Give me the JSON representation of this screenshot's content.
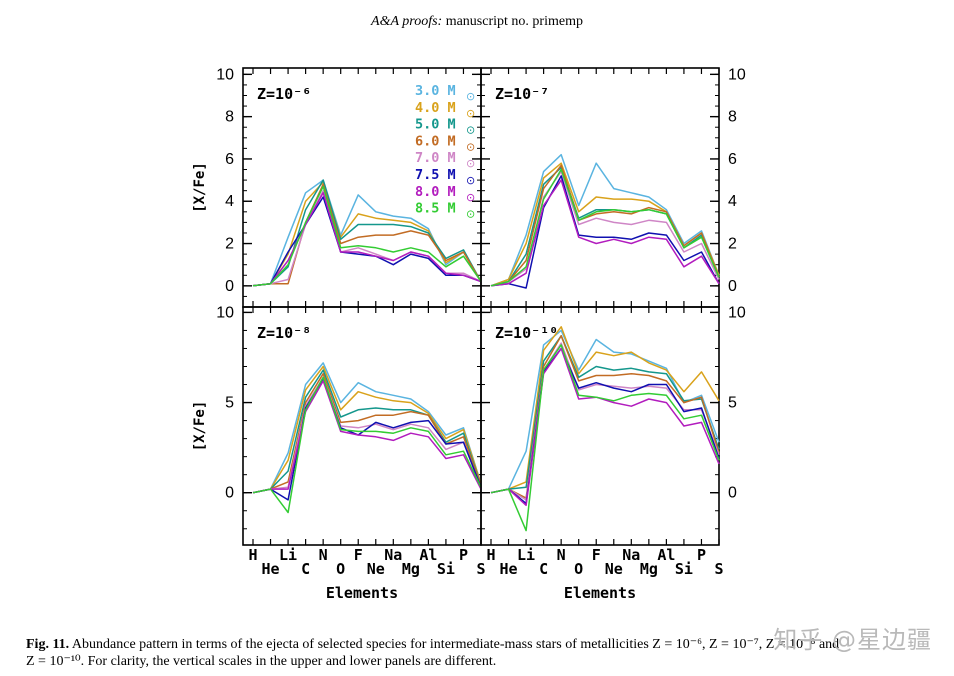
{
  "header": {
    "journal": "A&A proofs:",
    "rest": " manuscript no. primemp"
  },
  "watermark": "知乎 @星边疆",
  "caption": {
    "label": "Fig. 11.",
    "text": " Abundance pattern in terms of the ejecta of selected species for intermediate-mass stars of metallicities Z = 10⁻⁶, Z = 10⁻⁷, Z = 10⁻⁸ and",
    "text2": "Z = 10⁻¹⁰. For clarity, the vertical scales in the upper and lower panels are different."
  },
  "chart_data": {
    "type": "line",
    "xlabel": "Elements",
    "ylabel": "[X/Fe]",
    "elements_upper_row": [
      "H",
      "Li",
      "N",
      "F",
      "Na",
      "Al",
      "P"
    ],
    "elements_lower_row": [
      "He",
      "C",
      "O",
      "Ne",
      "Mg",
      "Si",
      "S"
    ],
    "x_order": [
      "H",
      "He",
      "Li",
      "C",
      "N",
      "O",
      "F",
      "Ne",
      "Na",
      "Mg",
      "Al",
      "Si",
      "P",
      "S"
    ],
    "legend_labels": [
      "3.0 M",
      "4.0 M",
      "5.0 M",
      "6.0 M",
      "7.0 M",
      "7.5 M",
      "8.0 M",
      "8.5 M"
    ],
    "legend_sun": "⊙",
    "legend_colors": [
      "#5ab4e0",
      "#d9a21b",
      "#14978c",
      "#c26c24",
      "#cf86c6",
      "#1010b0",
      "#b21cbe",
      "#33cc33"
    ],
    "panels": [
      {
        "title": "Z=10⁻⁶",
        "ylim": [
          -1,
          10.3
        ],
        "yticks": [
          0,
          2,
          4,
          6,
          8,
          10
        ],
        "series": [
          {
            "name": "3.0 M",
            "values": [
              0,
              0.1,
              2.3,
              4.4,
              5.0,
              2.4,
              4.3,
              3.5,
              3.3,
              3.2,
              2.7,
              1.0,
              1.6,
              0.2
            ]
          },
          {
            "name": "4.0 M",
            "values": [
              0,
              0.1,
              1.5,
              4.0,
              4.9,
              2.3,
              3.4,
              3.2,
              3.1,
              3.0,
              2.6,
              1.1,
              1.6,
              0.2
            ]
          },
          {
            "name": "5.0 M",
            "values": [
              0,
              0.1,
              0.9,
              3.6,
              5.0,
              2.2,
              2.9,
              2.9,
              2.9,
              2.8,
              2.5,
              1.3,
              1.7,
              0.2
            ]
          },
          {
            "name": "6.0 M",
            "values": [
              0,
              0.1,
              0.1,
              3.0,
              4.8,
              2.0,
              2.3,
              2.4,
              2.4,
              2.6,
              2.4,
              1.2,
              1.6,
              0.2
            ]
          },
          {
            "name": "7.0 M",
            "values": [
              0,
              0.1,
              0.3,
              2.9,
              4.5,
              1.6,
              1.8,
              1.5,
              1.2,
              1.6,
              1.4,
              0.6,
              0.6,
              0.2
            ]
          },
          {
            "name": "7.5 M",
            "values": [
              0,
              0.1,
              1.6,
              2.9,
              4.2,
              1.6,
              1.5,
              1.4,
              1.0,
              1.5,
              1.3,
              0.5,
              0.5,
              0.2
            ]
          },
          {
            "name": "8.0 M",
            "values": [
              0,
              0.1,
              1.2,
              2.9,
              4.4,
              1.6,
              1.6,
              1.4,
              1.2,
              1.6,
              1.4,
              0.6,
              0.5,
              0.2
            ]
          },
          {
            "name": "8.5 M",
            "values": [
              0,
              0.1,
              1.0,
              3.0,
              4.7,
              1.8,
              1.9,
              1.8,
              1.6,
              1.8,
              1.6,
              0.9,
              1.4,
              0.2
            ]
          }
        ]
      },
      {
        "title": "Z=10⁻⁷",
        "ylim": [
          -1,
          10.3
        ],
        "yticks": [
          0,
          2,
          4,
          6,
          8,
          10
        ],
        "series": [
          {
            "name": "3.0 M",
            "values": [
              0,
              0.3,
              2.4,
              5.4,
              6.2,
              3.8,
              5.8,
              4.6,
              4.4,
              4.2,
              3.6,
              2.0,
              2.6,
              0.5
            ]
          },
          {
            "name": "4.0 M",
            "values": [
              0,
              0.3,
              2.0,
              5.1,
              5.8,
              3.5,
              4.2,
              4.1,
              4.1,
              4.0,
              3.5,
              1.9,
              2.5,
              0.5
            ]
          },
          {
            "name": "5.0 M",
            "values": [
              0,
              0.2,
              1.5,
              4.8,
              5.6,
              3.2,
              3.6,
              3.6,
              3.5,
              3.6,
              3.4,
              1.8,
              2.4,
              0.4
            ]
          },
          {
            "name": "6.0 M",
            "values": [
              0,
              0.2,
              1.2,
              4.6,
              5.7,
              3.1,
              3.4,
              3.5,
              3.4,
              3.7,
              3.5,
              1.9,
              2.5,
              0.4
            ]
          },
          {
            "name": "7.0 M",
            "values": [
              0,
              0.2,
              0.8,
              4.2,
              5.4,
              2.9,
              3.2,
              3.0,
              2.9,
              3.1,
              3.0,
              1.6,
              2.0,
              0.3
            ]
          },
          {
            "name": "7.5 M",
            "values": [
              0,
              0.1,
              -0.1,
              3.7,
              5.2,
              2.4,
              2.3,
              2.3,
              2.2,
              2.5,
              2.4,
              1.2,
              1.6,
              0.1
            ]
          },
          {
            "name": "8.0 M",
            "values": [
              0,
              0.1,
              0.6,
              3.8,
              5.0,
              2.3,
              2.0,
              2.2,
              2.0,
              2.3,
              2.2,
              0.9,
              1.4,
              0.1
            ]
          },
          {
            "name": "8.5 M",
            "values": [
              0,
              0.2,
              0.9,
              4.1,
              5.5,
              3.1,
              3.5,
              3.6,
              3.5,
              3.6,
              3.4,
              1.8,
              2.3,
              0.4
            ]
          }
        ]
      },
      {
        "title": "Z=10⁻⁸",
        "ylim": [
          -2.9,
          10.3
        ],
        "yticks": [
          0,
          5,
          10
        ],
        "series": [
          {
            "name": "3.0 M",
            "values": [
              0,
              0.2,
              2.2,
              6.0,
              7.2,
              5.0,
              6.1,
              5.6,
              5.4,
              5.2,
              4.5,
              3.2,
              3.6,
              0.5
            ]
          },
          {
            "name": "4.0 M",
            "values": [
              0,
              0.2,
              1.8,
              5.7,
              7.0,
              4.6,
              5.6,
              5.3,
              5.1,
              5.0,
              4.4,
              3.0,
              3.5,
              0.5
            ]
          },
          {
            "name": "5.0 M",
            "values": [
              0,
              0.2,
              1.2,
              5.3,
              6.8,
              4.2,
              4.6,
              4.7,
              4.6,
              4.6,
              4.3,
              2.8,
              3.3,
              0.4
            ]
          },
          {
            "name": "6.0 M",
            "values": [
              0,
              0.2,
              0.6,
              5.0,
              6.6,
              3.9,
              4.0,
              4.3,
              4.3,
              4.5,
              4.3,
              2.7,
              3.1,
              0.4
            ]
          },
          {
            "name": "7.0 M",
            "values": [
              0,
              0.2,
              0.3,
              4.8,
              6.4,
              3.7,
              3.6,
              3.8,
              3.5,
              3.8,
              3.6,
              2.4,
              2.8,
              0.3
            ]
          },
          {
            "name": "7.5 M",
            "values": [
              0,
              0.2,
              -0.4,
              4.7,
              6.3,
              3.6,
              3.2,
              3.9,
              3.6,
              3.9,
              4.0,
              2.7,
              2.8,
              0.3
            ]
          },
          {
            "name": "8.0 M",
            "values": [
              0,
              0.2,
              0.2,
              4.5,
              6.2,
              3.4,
              3.2,
              3.1,
              2.9,
              3.3,
              3.1,
              1.9,
              2.1,
              0.2
            ]
          },
          {
            "name": "8.5 M",
            "values": [
              0,
              0.2,
              -1.1,
              4.6,
              6.4,
              3.5,
              3.4,
              3.4,
              3.3,
              3.6,
              3.4,
              2.1,
              2.3,
              0.3
            ]
          }
        ]
      },
      {
        "title": "Z=10⁻¹⁰",
        "ylim": [
          -2.9,
          10.3
        ],
        "yticks": [
          0,
          5,
          10
        ],
        "series": [
          {
            "name": "3.0 M",
            "values": [
              0,
              0.2,
              2.3,
              8.2,
              9.0,
              6.8,
              8.5,
              7.8,
              7.7,
              7.3,
              6.9,
              5.0,
              5.4,
              2.8
            ]
          },
          {
            "name": "4.0 M",
            "values": [
              0,
              0.2,
              0.6,
              7.9,
              9.2,
              6.6,
              7.8,
              7.6,
              7.8,
              7.2,
              6.8,
              5.6,
              6.7,
              5.1
            ]
          },
          {
            "name": "5.0 M",
            "values": [
              0,
              0.2,
              0.3,
              7.3,
              8.7,
              6.4,
              7.0,
              6.8,
              6.9,
              6.7,
              6.6,
              5.1,
              5.2,
              2.4
            ]
          },
          {
            "name": "6.0 M",
            "values": [
              0,
              0.2,
              -0.3,
              7.0,
              8.7,
              6.2,
              6.5,
              6.5,
              6.6,
              6.5,
              6.2,
              5.0,
              5.3,
              2.2
            ]
          },
          {
            "name": "7.0 M",
            "values": [
              0,
              0.2,
              -0.4,
              6.8,
              8.3,
              5.7,
              6.0,
              5.9,
              5.8,
              5.9,
              5.8,
              4.6,
              4.6,
              2.1
            ]
          },
          {
            "name": "7.5 M",
            "values": [
              0,
              0.2,
              -0.6,
              6.7,
              8.0,
              5.8,
              6.1,
              5.8,
              5.6,
              6.0,
              6.0,
              4.5,
              4.7,
              1.9
            ]
          },
          {
            "name": "8.0 M",
            "values": [
              0,
              0.2,
              -0.7,
              6.6,
              8.0,
              5.2,
              5.3,
              5.0,
              4.8,
              5.2,
              5.0,
              3.7,
              3.9,
              1.6
            ]
          },
          {
            "name": "8.5 M",
            "values": [
              0,
              0.2,
              -2.1,
              6.8,
              8.2,
              5.4,
              5.3,
              5.1,
              5.4,
              5.5,
              5.4,
              4.1,
              4.3,
              1.8
            ]
          }
        ]
      }
    ]
  }
}
